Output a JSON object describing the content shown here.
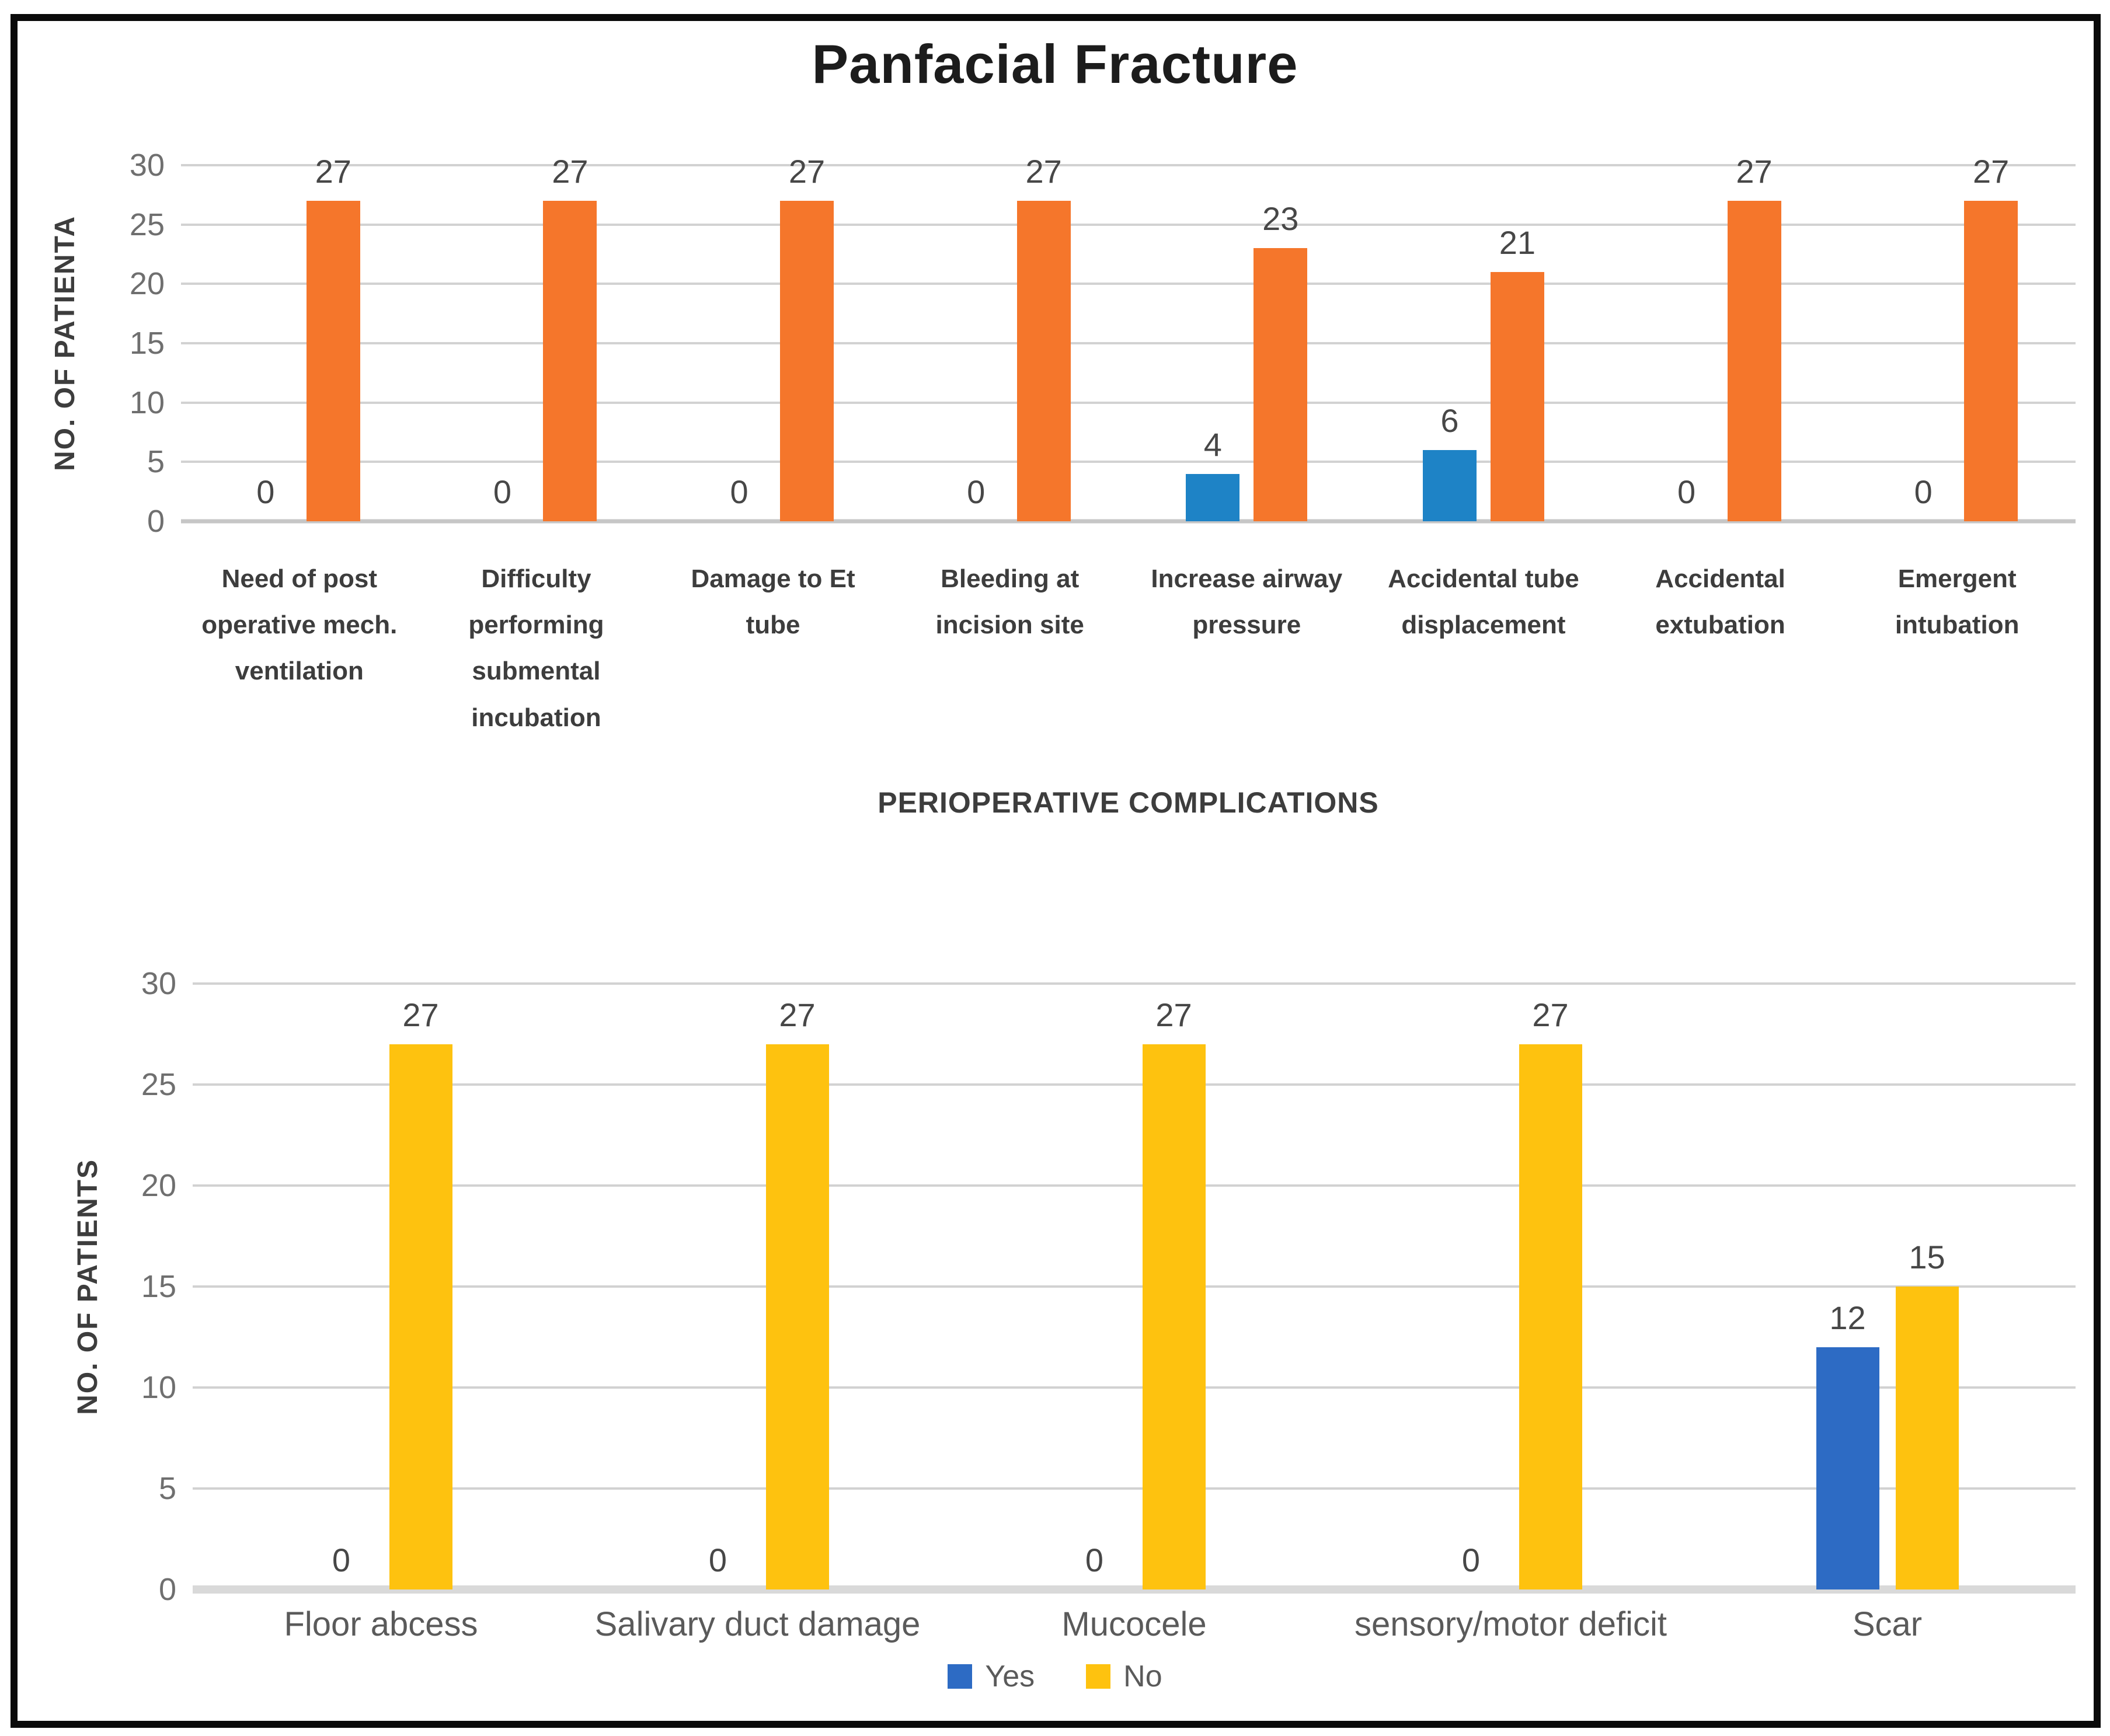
{
  "figure": {
    "title": "Panfacial Fracture"
  },
  "chart_data": [
    {
      "type": "bar",
      "title": "Panfacial Fracture",
      "xlabel": "PERIOPERATIVE COMPLICATIONS",
      "ylabel": "NO. OF PATIENTA",
      "ylim": [
        0,
        30
      ],
      "ytick_step": 5,
      "grid": true,
      "legend_position": "none",
      "categories": [
        "Need of post operative mech. ventilation",
        "Difficulty performing submental incubation",
        "Damage to Et tube",
        "Bleeding at incision site",
        "Increase airway pressure",
        "Accidental tube displacement",
        "Accidental extubation",
        "Emergent intubation"
      ],
      "series": [
        {
          "name": "Yes",
          "color": "#1e83c6",
          "values": [
            0,
            0,
            0,
            0,
            4,
            6,
            0,
            0
          ]
        },
        {
          "name": "No",
          "color": "#f5762b",
          "values": [
            27,
            27,
            27,
            27,
            23,
            21,
            27,
            27
          ]
        }
      ]
    },
    {
      "type": "bar",
      "title": "",
      "xlabel": "",
      "ylabel": "NO. OF PATIENTS",
      "ylim": [
        0,
        30
      ],
      "ytick_step": 5,
      "grid": true,
      "legend_position": "bottom",
      "categories": [
        "Floor abcess",
        "Salivary duct damage",
        "Mucocele",
        "sensory/motor deficit",
        "Scar"
      ],
      "series": [
        {
          "name": "Yes",
          "color": "#2d6bc4",
          "values": [
            0,
            0,
            0,
            0,
            12
          ]
        },
        {
          "name": "No",
          "color": "#fec20f",
          "values": [
            27,
            27,
            27,
            27,
            15
          ]
        }
      ]
    }
  ]
}
